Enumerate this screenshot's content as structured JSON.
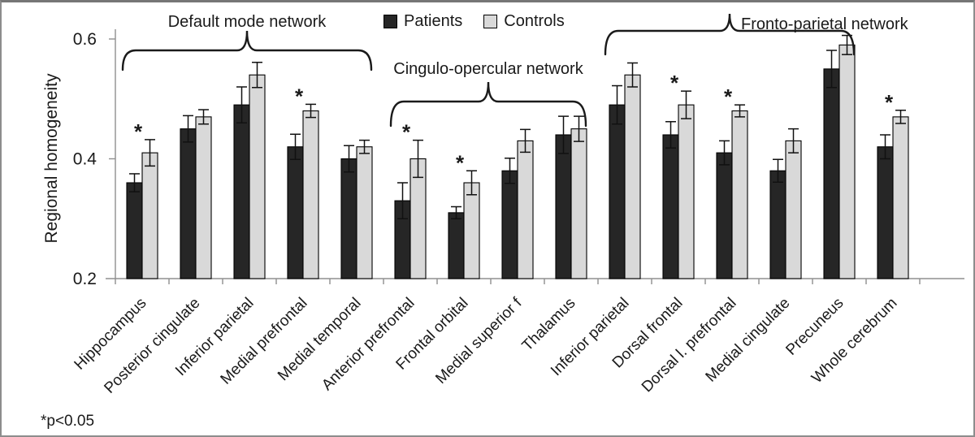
{
  "legend": {
    "items": [
      {
        "label": "Patients",
        "color": "#262626"
      },
      {
        "label": "Controls",
        "color": "#d9d9d9"
      }
    ]
  },
  "chart_data": {
    "type": "bar",
    "title": "",
    "xlabel": "",
    "ylabel": "Regional homogeneity",
    "ylim": [
      0.2,
      0.62
    ],
    "yticks": [
      0.2,
      0.4,
      0.6
    ],
    "ytick_labels": [
      "0.2",
      "0.4",
      "0.6"
    ],
    "grid": false,
    "legend_position": "top-center",
    "categories": [
      "Hippocampus",
      "Posterior cingulate",
      "Inferior parietal",
      "Medial prefrontal",
      "Medial temporal",
      "Anterior prefrontal",
      "Frontal orbital",
      "Medial superior f",
      "Thalamus",
      "Inferior parietal",
      "Dorsal frontal",
      "Dorsal l. prefrontal",
      "Medial cingulate",
      "Precuneus",
      "Whole cerebrum"
    ],
    "series": [
      {
        "name": "Patients",
        "color": "#262626",
        "values": [
          0.36,
          0.45,
          0.49,
          0.42,
          0.4,
          0.33,
          0.31,
          0.38,
          0.44,
          0.49,
          0.44,
          0.41,
          0.38,
          0.55,
          0.42
        ],
        "errors": [
          0.015,
          0.022,
          0.03,
          0.021,
          0.022,
          0.03,
          0.01,
          0.021,
          0.031,
          0.032,
          0.022,
          0.02,
          0.019,
          0.031,
          0.02
        ]
      },
      {
        "name": "Controls",
        "color": "#d9d9d9",
        "values": [
          0.41,
          0.47,
          0.54,
          0.48,
          0.42,
          0.4,
          0.36,
          0.43,
          0.45,
          0.54,
          0.49,
          0.48,
          0.43,
          0.59,
          0.47
        ],
        "errors": [
          0.022,
          0.012,
          0.021,
          0.011,
          0.011,
          0.031,
          0.02,
          0.019,
          0.021,
          0.02,
          0.023,
          0.01,
          0.02,
          0.016,
          0.011
        ]
      }
    ],
    "significant": [
      true,
      false,
      false,
      true,
      false,
      true,
      true,
      false,
      false,
      false,
      true,
      true,
      false,
      false,
      true
    ],
    "sig_marker": "*",
    "annotations": [
      {
        "label": "Default mode network",
        "span": [
          0,
          4
        ]
      },
      {
        "label": "Cingulo-opercular network",
        "span": [
          5,
          8
        ]
      },
      {
        "label": "Fronto-parietal network",
        "span": [
          9,
          13
        ]
      }
    ],
    "footnote": "*p<0.05"
  }
}
